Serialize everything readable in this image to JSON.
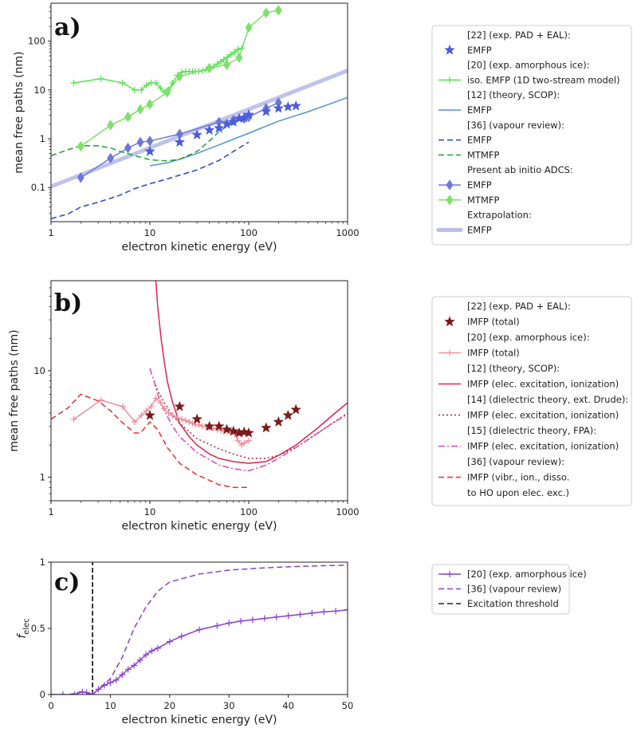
{
  "colors": {
    "expStar": "#4c5bd9",
    "expIce": "#55e24f",
    "scop": "#4f93d4",
    "vapEmfp": "#2447d2",
    "vapMtmfp": "#1fa02a",
    "adcsEmfp": "#6e78d8",
    "adcsMtmfp": "#7de06a",
    "extrap": "#b8bdea",
    "b22": "#7b1a1a",
    "b20": "#ef8f9c",
    "b12": "#e0234a",
    "b14": "#b02430",
    "b15": "#e542b5",
    "b36": "#e8302e",
    "c20": "#8b3fd4",
    "c36": "#8b3fd4",
    "thr": "#222222"
  },
  "chart_data": [
    {
      "panel": "a)",
      "type": "line",
      "xscale": "log",
      "yscale": "log",
      "xlabel": "electron kinetic energy (eV)",
      "ylabel": "mean free paths (nm)",
      "xlim": [
        1,
        1000
      ],
      "ylim": [
        0.02,
        600
      ],
      "xticks": [
        "1",
        "10",
        "100",
        "1000"
      ],
      "yticks": [
        "0.1",
        "1",
        "10",
        "100"
      ],
      "legend_position": "right",
      "series": [
        {
          "key": "extrap",
          "name": "EMFP",
          "style": "band",
          "x": [
            1,
            1000
          ],
          "y": [
            0.105,
            25
          ]
        },
        {
          "key": "scop",
          "name": "EMFP",
          "style": "solid",
          "x": [
            10,
            15,
            20,
            30,
            50,
            100,
            200,
            400,
            1000
          ],
          "y": [
            0.28,
            0.32,
            0.38,
            0.5,
            0.75,
            1.3,
            2.3,
            3.6,
            7.0
          ]
        },
        {
          "key": "vapEmfp",
          "name": "EMFP",
          "style": "dash",
          "x": [
            1,
            1.5,
            2,
            3,
            5,
            7,
            10,
            15,
            20,
            30,
            50,
            70,
            100
          ],
          "y": [
            0.023,
            0.029,
            0.04,
            0.05,
            0.07,
            0.095,
            0.12,
            0.15,
            0.18,
            0.23,
            0.36,
            0.55,
            0.85
          ]
        },
        {
          "key": "vapMtmfp",
          "name": "MTMFP",
          "style": "dash",
          "x": [
            1,
            1.5,
            2,
            3,
            4,
            5,
            7,
            10,
            15,
            20,
            30,
            40,
            50,
            70,
            100
          ],
          "y": [
            0.45,
            0.6,
            0.72,
            0.72,
            0.65,
            0.55,
            0.45,
            0.37,
            0.35,
            0.38,
            0.55,
            0.9,
            1.4,
            2.2,
            2.8
          ]
        },
        {
          "key": "expIce",
          "name": "iso. EMFP (1D two-stream model)",
          "style": "solid",
          "marker": "+",
          "x": [
            1.7,
            3.2,
            5.3,
            7,
            8.2,
            9.2,
            10.3,
            11.5,
            12.8,
            14,
            15.5,
            17,
            19,
            21,
            23,
            25,
            27,
            29,
            31,
            34,
            37,
            40,
            44,
            48,
            52,
            56,
            61,
            66,
            72,
            78,
            85
          ],
          "y": [
            14,
            17,
            14,
            10,
            10,
            12.5,
            14,
            14,
            11,
            9,
            10,
            14,
            20,
            23,
            24,
            24,
            24,
            24,
            24,
            25,
            26,
            28,
            30,
            34,
            38,
            42,
            47,
            53,
            60,
            68,
            72
          ]
        },
        {
          "key": "adcsMtmfp",
          "name": "MTMFP",
          "style": "solid",
          "marker": "diamond",
          "x": [
            2,
            4,
            6,
            8,
            10,
            15,
            20,
            40,
            60,
            80,
            100,
            150,
            200
          ],
          "y": [
            0.7,
            1.9,
            2.8,
            4.0,
            5.1,
            9,
            19,
            28,
            33,
            46,
            190,
            380,
            430
          ]
        },
        {
          "key": "adcsEmfp",
          "name": "EMFP",
          "style": "solid",
          "marker": "diamond",
          "x": [
            2,
            4,
            6,
            8,
            10,
            20,
            50,
            70,
            90,
            100,
            150,
            200
          ],
          "y": [
            0.16,
            0.4,
            0.65,
            0.85,
            0.9,
            1.25,
            2.2,
            2.4,
            2.6,
            2.8,
            4.2,
            5.5
          ]
        },
        {
          "key": "expStar",
          "name": "EMFP",
          "style": "none",
          "marker": "star",
          "x": [
            10,
            20,
            30,
            40,
            50,
            60,
            70,
            80,
            90,
            100,
            150,
            200,
            250,
            300
          ],
          "y": [
            0.55,
            0.85,
            1.2,
            1.5,
            1.65,
            2.0,
            2.2,
            2.6,
            2.7,
            3.1,
            3.6,
            4.2,
            4.5,
            4.7
          ]
        }
      ],
      "legend": [
        {
          "text": "[22] (exp. PAD + EAL):"
        },
        {
          "text": "EMFP",
          "key": "expStar",
          "style": "none",
          "marker": "star"
        },
        {
          "text": "[20] (exp. amorphous ice):"
        },
        {
          "text": "iso. EMFP (1D two-stream model)",
          "key": "expIce",
          "style": "solid",
          "marker": "+"
        },
        {
          "text": "[12] (theory, SCOP):"
        },
        {
          "text": "EMFP",
          "key": "scop",
          "style": "solid"
        },
        {
          "text": "[36] (vapour review):"
        },
        {
          "text": "EMFP",
          "key": "vapEmfp",
          "style": "dash"
        },
        {
          "text": "MTMFP",
          "key": "vapMtmfp",
          "style": "dash"
        },
        {
          "text": "Present ab initio ADCS:"
        },
        {
          "text": "EMFP",
          "key": "adcsEmfp",
          "style": "solid",
          "marker": "diamond"
        },
        {
          "text": "MTMFP",
          "key": "adcsMtmfp",
          "style": "solid",
          "marker": "diamond"
        },
        {
          "text": "Extrapolation:"
        },
        {
          "text": "EMFP",
          "key": "extrap",
          "style": "band"
        }
      ]
    },
    {
      "panel": "b)",
      "type": "line",
      "xscale": "log",
      "yscale": "log",
      "xlabel": "electron kinetic energy (eV)",
      "ylabel": "mean free paths (nm)",
      "xlim": [
        1,
        1000
      ],
      "ylim": [
        0.6,
        70
      ],
      "xticks": [
        "1",
        "10",
        "100",
        "1000"
      ],
      "yticks": [
        "1",
        "10"
      ],
      "legend_position": "right",
      "series": [
        {
          "key": "b36",
          "name": "IMFP (vibr., ion., disso. to HO upon elec. exc.)",
          "style": "dash",
          "x": [
            1,
            1.5,
            2,
            3,
            4,
            5,
            7,
            8,
            10,
            12,
            15,
            20,
            30,
            50,
            70,
            100
          ],
          "y": [
            3.5,
            4.5,
            6,
            5.2,
            4.2,
            3.4,
            2.6,
            2.6,
            3.3,
            2.8,
            1.9,
            1.35,
            1.05,
            0.85,
            0.8,
            0.8
          ]
        },
        {
          "key": "b12",
          "name": "IMFP (elec. excitation, ionization)",
          "style": "solid",
          "x": [
            11.5,
            12,
            13,
            14,
            15,
            17,
            20,
            25,
            30,
            40,
            50,
            70,
            100,
            150,
            200,
            300,
            500,
            700,
            1000
          ],
          "y": [
            70,
            40,
            20,
            12,
            8,
            5,
            3.2,
            2.4,
            2.0,
            1.65,
            1.5,
            1.4,
            1.35,
            1.4,
            1.6,
            2.0,
            2.9,
            3.8,
            5.0
          ]
        },
        {
          "key": "b14",
          "name": "IMFP (elec. excitation, ionization)",
          "style": "dot",
          "x": [
            11,
            12,
            14,
            17,
            20,
            30,
            50,
            70,
            100,
            150,
            200,
            300,
            500,
            700,
            1000
          ],
          "y": [
            8,
            6.5,
            5,
            3.8,
            3.2,
            2.3,
            1.85,
            1.65,
            1.5,
            1.5,
            1.6,
            1.9,
            2.6,
            3.2,
            4.0
          ]
        },
        {
          "key": "b15",
          "name": "IMFP (elec. excitation, ionization)",
          "style": "dashdot",
          "x": [
            10,
            11,
            12,
            14,
            17,
            20,
            30,
            50,
            70,
            100,
            150,
            200,
            300,
            500,
            700,
            1000
          ],
          "y": [
            10.5,
            8,
            6,
            4.2,
            3.0,
            2.4,
            1.7,
            1.3,
            1.2,
            1.15,
            1.3,
            1.5,
            1.9,
            2.6,
            3.2,
            3.9
          ]
        },
        {
          "key": "b20",
          "name": "IMFP (total)",
          "style": "solid",
          "marker": "+",
          "x": [
            1.7,
            3.2,
            5.3,
            7,
            8.2,
            9.2,
            10.3,
            11.5,
            12.8,
            14,
            15.5,
            17,
            19,
            21,
            23,
            25,
            27,
            29,
            31,
            34,
            37,
            40,
            44,
            48,
            52,
            56,
            61,
            66,
            72,
            78,
            85,
            90,
            100
          ],
          "y": [
            3.5,
            5.3,
            4.6,
            3.3,
            3.8,
            4.2,
            4.6,
            5.5,
            5.0,
            4.4,
            4.0,
            3.8,
            3.6,
            3.5,
            3.4,
            3.3,
            3.2,
            3.1,
            3.1,
            3.0,
            3.0,
            2.9,
            2.9,
            2.8,
            2.75,
            2.7,
            2.7,
            2.65,
            2.55,
            2.2,
            2.0,
            2.1,
            2.2
          ]
        },
        {
          "key": "b22",
          "name": "IMFP (total)",
          "style": "none",
          "marker": "star",
          "x": [
            10,
            20,
            30,
            40,
            50,
            60,
            70,
            80,
            90,
            100,
            150,
            200,
            250,
            300
          ],
          "y": [
            3.8,
            4.6,
            3.5,
            3.0,
            3.0,
            2.8,
            2.7,
            2.6,
            2.65,
            2.6,
            2.9,
            3.3,
            3.8,
            4.3
          ]
        }
      ],
      "legend": [
        {
          "text": "[22] (exp. PAD + EAL):"
        },
        {
          "text": "IMFP (total)",
          "key": "b22",
          "style": "none",
          "marker": "star"
        },
        {
          "text": "[20] (exp. amorphous ice):"
        },
        {
          "text": "IMFP (total)",
          "key": "b20",
          "style": "solid",
          "marker": "+"
        },
        {
          "text": "[12] (theory, SCOP):"
        },
        {
          "text": "IMFP (elec. excitation, ionization)",
          "key": "b12",
          "style": "solid"
        },
        {
          "text": "[14] (dielectric theory, ext. Drude):"
        },
        {
          "text": "IMFP (elec. excitation, ionization)",
          "key": "b14",
          "style": "dot"
        },
        {
          "text": "[15] (dielectric theory, FPA):"
        },
        {
          "text": "IMFP (elec. excitation, ionization)",
          "key": "b15",
          "style": "dashdot"
        },
        {
          "text": "[36] (vapour review):"
        },
        {
          "text": "IMFP (vibr., ion., disso.",
          "key": "b36",
          "style": "dash"
        },
        {
          "text": "to HO upon elec. exc.)"
        }
      ]
    },
    {
      "panel": "c)",
      "type": "line",
      "xscale": "linear",
      "yscale": "linear",
      "xlabel": "electron kinetic energy (eV)",
      "ylabel": "f_elec",
      "ylabel_main": "f",
      "ylabel_sub": "elec",
      "xlim": [
        0,
        50
      ],
      "ylim": [
        0,
        1
      ],
      "xticks": [
        "0",
        "10",
        "20",
        "30",
        "40",
        "50"
      ],
      "yticks": [
        "0",
        "0.5",
        "1"
      ],
      "legend_position": "right",
      "series": [
        {
          "key": "thr",
          "name": "Excitation threshold",
          "style": "vline",
          "x": [
            7,
            7
          ],
          "y": [
            0,
            1
          ]
        },
        {
          "key": "c36",
          "name": "[36] (vapour review)",
          "style": "dash",
          "x": [
            0,
            3,
            5,
            6,
            7,
            8,
            10,
            12,
            14,
            16,
            18,
            20,
            25,
            30,
            35,
            40,
            45,
            50
          ],
          "y": [
            0,
            0,
            0.02,
            0.01,
            0.0,
            0.04,
            0.12,
            0.28,
            0.5,
            0.66,
            0.78,
            0.85,
            0.91,
            0.94,
            0.955,
            0.965,
            0.972,
            0.978
          ]
        },
        {
          "key": "c20",
          "name": "[20] (exp. amorphous ice)",
          "style": "solid",
          "marker": "+",
          "x": [
            0,
            2,
            4,
            5.3,
            6,
            7,
            8,
            9,
            10,
            11,
            12,
            13,
            14,
            15,
            16,
            17,
            18,
            20,
            22,
            25,
            28,
            30,
            32,
            34,
            36,
            38,
            40,
            42,
            44,
            46,
            48,
            50
          ],
          "y": [
            0,
            0,
            0,
            0.02,
            0.015,
            0.0,
            0.04,
            0.07,
            0.09,
            0.11,
            0.15,
            0.19,
            0.22,
            0.26,
            0.3,
            0.33,
            0.35,
            0.4,
            0.44,
            0.49,
            0.52,
            0.54,
            0.555,
            0.565,
            0.575,
            0.585,
            0.595,
            0.605,
            0.615,
            0.625,
            0.63,
            0.64
          ]
        }
      ],
      "legend": [
        {
          "text": "[20] (exp. amorphous ice)",
          "key": "c20",
          "style": "solid",
          "marker": "+"
        },
        {
          "text": "[36] (vapour review)",
          "key": "c36",
          "style": "dash"
        },
        {
          "text": "Excitation threshold",
          "key": "thr",
          "style": "dash"
        }
      ]
    }
  ]
}
